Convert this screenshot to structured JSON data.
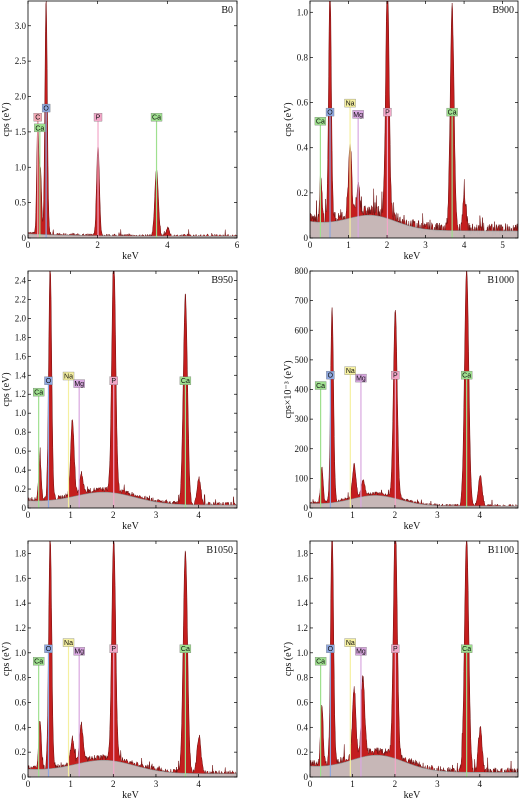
{
  "colors": {
    "peak_fill": "#c41e1e",
    "peak_dark": "#6b0d0d",
    "background_fill": "#c8c8c8",
    "background_line": "#8a8a8a",
    "element_colors": {
      "C": "#f2a7b3",
      "O": "#8fa8e0",
      "Ca": "#9fe08f",
      "P": "#f2a7c8",
      "Na": "#f5f0a0",
      "Mg": "#d9a7e0"
    }
  },
  "chart_data": [
    {
      "type": "area",
      "panel_label": "B0",
      "xlabel": "keV",
      "ylabel": "cps (eV)",
      "xlim": [
        0,
        6
      ],
      "ylim": [
        0,
        3.35
      ],
      "xticks": [
        0,
        2,
        4,
        6
      ],
      "yticks": [
        0,
        0.5,
        1.0,
        1.5,
        2.0,
        2.5,
        3.0
      ],
      "ytick_labels": [
        "0",
        "0.5",
        "1.0",
        "1.5",
        "2.0",
        "2.5",
        "3.0"
      ],
      "background_level": 0.05,
      "peaks": [
        {
          "x": 0.28,
          "y": 1.6,
          "w": 0.03
        },
        {
          "x": 0.36,
          "y": 0.9,
          "w": 0.03
        },
        {
          "x": 0.52,
          "y": 3.35,
          "w": 0.035
        },
        {
          "x": 2.01,
          "y": 1.3,
          "w": 0.04
        },
        {
          "x": 3.69,
          "y": 0.95,
          "w": 0.05
        },
        {
          "x": 4.01,
          "y": 0.12,
          "w": 0.04
        }
      ],
      "element_labels": [
        {
          "element": "C",
          "x": 0.28,
          "y": 1.65
        },
        {
          "element": "Ca",
          "x": 0.34,
          "y": 1.5
        },
        {
          "element": "O",
          "x": 0.52,
          "y": 1.78
        },
        {
          "element": "P",
          "x": 2.01,
          "y": 1.65
        },
        {
          "element": "Ca",
          "x": 3.69,
          "y": 1.65
        }
      ]
    },
    {
      "type": "area",
      "panel_label": "B900",
      "xlabel": "keV",
      "ylabel": "cps (eV)",
      "xlim": [
        0,
        5.4
      ],
      "ylim": [
        0,
        1.05
      ],
      "xticks": [
        0,
        1,
        2,
        3,
        4,
        5
      ],
      "yticks": [
        0,
        0.2,
        0.4,
        0.6,
        0.8,
        1.0
      ],
      "ytick_labels": [
        "0",
        "0.2",
        "0.4",
        "0.6",
        "0.8",
        "1.0"
      ],
      "background_level": 0.06,
      "hump": {
        "x": 1.6,
        "y": 0.07,
        "w": 0.9
      },
      "peaks": [
        {
          "x": 0.28,
          "y": 0.2,
          "w": 0.03
        },
        {
          "x": 0.52,
          "y": 1.05,
          "w": 0.035
        },
        {
          "x": 1.04,
          "y": 0.33,
          "w": 0.04
        },
        {
          "x": 1.25,
          "y": 0.12,
          "w": 0.04
        },
        {
          "x": 2.01,
          "y": 1.05,
          "w": 0.045
        },
        {
          "x": 3.69,
          "y": 0.98,
          "w": 0.05
        },
        {
          "x": 4.01,
          "y": 0.15,
          "w": 0.045
        }
      ],
      "element_labels": [
        {
          "element": "Ca",
          "x": 0.27,
          "y": 0.5
        },
        {
          "element": "O",
          "x": 0.52,
          "y": 0.54
        },
        {
          "element": "Na",
          "x": 1.04,
          "y": 0.58
        },
        {
          "element": "Mg",
          "x": 1.25,
          "y": 0.53
        },
        {
          "element": "P",
          "x": 2.01,
          "y": 0.54
        },
        {
          "element": "Ca",
          "x": 3.69,
          "y": 0.54
        }
      ]
    },
    {
      "type": "area",
      "panel_label": "B950",
      "xlabel": "keV",
      "ylabel": "cps (eV)",
      "xlim": [
        0,
        4.9
      ],
      "ylim": [
        0,
        2.5
      ],
      "xticks": [
        0,
        1,
        2,
        3,
        4
      ],
      "yticks": [
        0,
        0.2,
        0.4,
        0.6,
        0.8,
        1.0,
        1.2,
        1.4,
        1.6,
        1.8,
        2.0,
        2.2,
        2.4
      ],
      "ytick_labels": [
        "0",
        "0.2",
        "0.4",
        "0.6",
        "0.8",
        "1.0",
        "1.2",
        "1.4",
        "1.6",
        "1.8",
        "2.0",
        "2.2",
        "2.4"
      ],
      "background_level": 0.06,
      "hump": {
        "x": 1.8,
        "y": 0.15,
        "w": 1.0
      },
      "peaks": [
        {
          "x": 0.28,
          "y": 0.45,
          "w": 0.03
        },
        {
          "x": 0.52,
          "y": 2.5,
          "w": 0.035
        },
        {
          "x": 1.04,
          "y": 0.8,
          "w": 0.04
        },
        {
          "x": 1.25,
          "y": 0.2,
          "w": 0.04
        },
        {
          "x": 2.01,
          "y": 2.5,
          "w": 0.045
        },
        {
          "x": 3.69,
          "y": 2.2,
          "w": 0.05
        },
        {
          "x": 4.01,
          "y": 0.27,
          "w": 0.045
        }
      ],
      "element_labels": [
        {
          "element": "Ca",
          "x": 0.25,
          "y": 1.18
        },
        {
          "element": "O",
          "x": 0.48,
          "y": 1.3
        },
        {
          "element": "Na",
          "x": 0.95,
          "y": 1.35
        },
        {
          "element": "Mg",
          "x": 1.2,
          "y": 1.27
        },
        {
          "element": "P",
          "x": 2.01,
          "y": 1.3
        },
        {
          "element": "Ca",
          "x": 3.69,
          "y": 1.3
        }
      ]
    },
    {
      "type": "area",
      "panel_label": "B1000",
      "xlabel": "keV",
      "ylabel": "cps×10⁻³ (eV)",
      "xlim": [
        0,
        4.9
      ],
      "ylim": [
        0,
        800
      ],
      "xticks": [
        0,
        1,
        2,
        3,
        4
      ],
      "yticks": [
        0,
        100,
        200,
        300,
        400,
        500,
        600,
        700,
        800
      ],
      "ytick_labels": [
        "0",
        "100",
        "200",
        "300",
        "400",
        "500",
        "600",
        "700",
        "800"
      ],
      "background_level": 12,
      "hump": {
        "x": 1.55,
        "y": 40,
        "w": 0.8
      },
      "peaks": [
        {
          "x": 0.28,
          "y": 120,
          "w": 0.03
        },
        {
          "x": 0.52,
          "y": 660,
          "w": 0.035
        },
        {
          "x": 1.04,
          "y": 110,
          "w": 0.04
        },
        {
          "x": 1.25,
          "y": 50,
          "w": 0.04
        },
        {
          "x": 2.01,
          "y": 630,
          "w": 0.045
        },
        {
          "x": 3.69,
          "y": 800,
          "w": 0.05
        },
        {
          "x": 4.01,
          "y": 100,
          "w": 0.045
        }
      ],
      "element_labels": [
        {
          "element": "Ca",
          "x": 0.25,
          "y": 400
        },
        {
          "element": "O",
          "x": 0.48,
          "y": 435
        },
        {
          "element": "Na",
          "x": 0.95,
          "y": 450
        },
        {
          "element": "Mg",
          "x": 1.2,
          "y": 425
        },
        {
          "element": "P",
          "x": 2.01,
          "y": 435
        },
        {
          "element": "Ca",
          "x": 3.69,
          "y": 435
        }
      ]
    },
    {
      "type": "area",
      "panel_label": "B1050",
      "xlabel": "keV",
      "ylabel": "cps (eV)",
      "xlim": [
        0,
        4.9
      ],
      "ylim": [
        0,
        1.9
      ],
      "xticks": [
        0,
        1,
        2,
        3,
        4
      ],
      "yticks": [
        0,
        0.2,
        0.4,
        0.6,
        0.8,
        1.0,
        1.2,
        1.4,
        1.6,
        1.8
      ],
      "ytick_labels": [
        "0",
        "0.2",
        "0.4",
        "0.6",
        "0.8",
        "1.0",
        "1.2",
        "1.4",
        "1.6",
        "1.8"
      ],
      "background_level": 0.05,
      "hump": {
        "x": 1.8,
        "y": 0.12,
        "w": 1.0
      },
      "peaks": [
        {
          "x": 0.28,
          "y": 0.4,
          "w": 0.03
        },
        {
          "x": 0.52,
          "y": 1.9,
          "w": 0.035
        },
        {
          "x": 1.04,
          "y": 0.2,
          "w": 0.04
        },
        {
          "x": 1.25,
          "y": 0.3,
          "w": 0.04
        },
        {
          "x": 2.01,
          "y": 1.8,
          "w": 0.045
        },
        {
          "x": 3.69,
          "y": 1.8,
          "w": 0.05
        },
        {
          "x": 4.01,
          "y": 0.3,
          "w": 0.045
        }
      ],
      "element_labels": [
        {
          "element": "Ca",
          "x": 0.25,
          "y": 0.9
        },
        {
          "element": "O",
          "x": 0.48,
          "y": 1.0
        },
        {
          "element": "Na",
          "x": 0.95,
          "y": 1.05
        },
        {
          "element": "Mg",
          "x": 1.2,
          "y": 0.98
        },
        {
          "element": "P",
          "x": 2.01,
          "y": 1.0
        },
        {
          "element": "Ca",
          "x": 3.69,
          "y": 1.0
        }
      ]
    },
    {
      "type": "area",
      "panel_label": "B1100",
      "xlabel": "keV",
      "ylabel": "cps (eV)",
      "xlim": [
        0,
        4.9
      ],
      "ylim": [
        0,
        1.9
      ],
      "xticks": [
        0,
        1,
        2,
        3,
        4
      ],
      "yticks": [
        0,
        0.2,
        0.4,
        0.6,
        0.8,
        1.0,
        1.2,
        1.4,
        1.6,
        1.8
      ],
      "ytick_labels": [
        "0",
        "0.2",
        "0.4",
        "0.6",
        "0.8",
        "1.0",
        "1.2",
        "1.4",
        "1.6",
        "1.8"
      ],
      "background_level": 0.07,
      "hump": {
        "x": 1.6,
        "y": 0.15,
        "w": 0.9
      },
      "peaks": [
        {
          "x": 0.28,
          "y": 0.5,
          "w": 0.03
        },
        {
          "x": 0.52,
          "y": 1.9,
          "w": 0.035
        },
        {
          "x": 1.04,
          "y": 0.55,
          "w": 0.04
        },
        {
          "x": 1.25,
          "y": 0.6,
          "w": 0.04
        },
        {
          "x": 2.01,
          "y": 1.9,
          "w": 0.045
        },
        {
          "x": 3.69,
          "y": 1.9,
          "w": 0.05
        },
        {
          "x": 4.01,
          "y": 0.35,
          "w": 0.045
        }
      ],
      "element_labels": [
        {
          "element": "Ca",
          "x": 0.25,
          "y": 0.9
        },
        {
          "element": "O",
          "x": 0.48,
          "y": 1.0
        },
        {
          "element": "Na",
          "x": 0.95,
          "y": 1.05
        },
        {
          "element": "Mg",
          "x": 1.2,
          "y": 0.98
        },
        {
          "element": "P",
          "x": 2.01,
          "y": 1.0
        },
        {
          "element": "Ca",
          "x": 3.69,
          "y": 1.0
        }
      ]
    }
  ]
}
